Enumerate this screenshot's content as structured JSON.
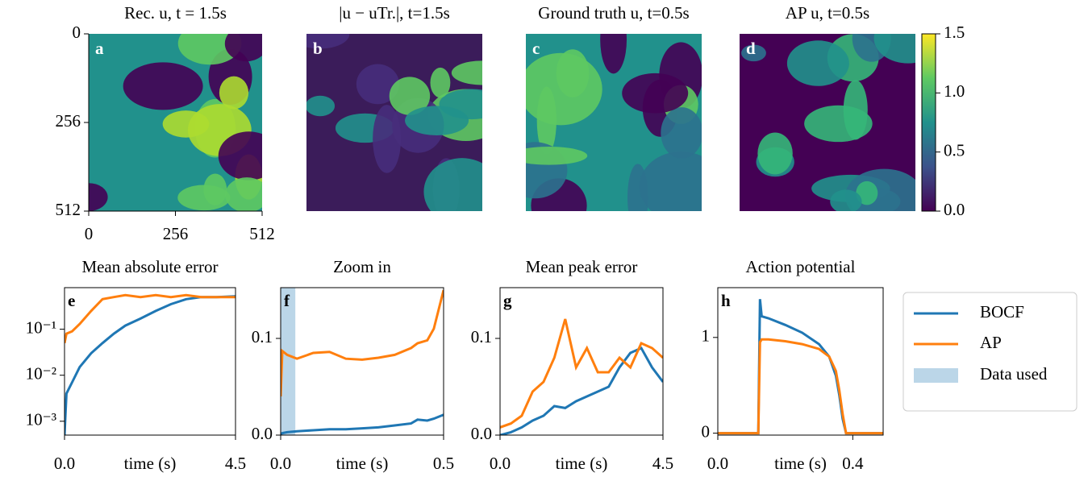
{
  "chart_data": [
    {
      "type": "heatmap",
      "title": "Rec. u, t = 1.5s",
      "label": "a",
      "xlim": [
        0,
        512
      ],
      "ylim": [
        512,
        0
      ],
      "xticks": [
        0,
        256,
        512
      ],
      "yticks": [
        0,
        256,
        512
      ]
    },
    {
      "type": "heatmap",
      "title": "|u − uTr.|, t=1.5s",
      "label": "b"
    },
    {
      "type": "heatmap",
      "title": "Ground truth u, t=0.5s",
      "label": "c"
    },
    {
      "type": "heatmap",
      "title": "AP u, t=0.5s",
      "label": "d",
      "colorbar": {
        "lim": [
          0,
          1.5
        ],
        "ticks": [
          {
            "value": 0,
            "label": "0.0"
          },
          0.5,
          {
            "value": 1,
            "label": "1.0"
          },
          1.5
        ]
      }
    },
    {
      "type": "line",
      "title": "Mean absolute error",
      "label": "e",
      "xlabel": "time (s)",
      "log_y": true,
      "xlim": [
        0,
        4.5
      ],
      "xticks": [
        {
          "value": 0,
          "label": "0.0"
        },
        4.5
      ],
      "ylim": [
        0.0005,
        0.8
      ],
      "yticks": [
        {
          "value": 0.001,
          "label": "10⁻³"
        },
        {
          "value": 0.01,
          "label": "10⁻²"
        },
        {
          "value": 0.1,
          "label": "10⁻¹"
        }
      ],
      "x": [
        0,
        0.05,
        0.2,
        0.4,
        0.7,
        1.0,
        1.3,
        1.6,
        2.0,
        2.4,
        2.8,
        3.2,
        3.6,
        4.0,
        4.5
      ],
      "series": [
        {
          "name": "BOCF",
          "color": "#1f77b4",
          "values": [
            0.0005,
            0.004,
            0.007,
            0.015,
            0.03,
            0.05,
            0.08,
            0.12,
            0.17,
            0.25,
            0.35,
            0.45,
            0.5,
            0.5,
            0.52
          ]
        },
        {
          "name": "AP",
          "color": "#ff7f0e",
          "values": [
            0.05,
            0.08,
            0.09,
            0.13,
            0.25,
            0.45,
            0.5,
            0.55,
            0.5,
            0.55,
            0.5,
            0.55,
            0.5,
            0.5,
            0.5
          ]
        }
      ]
    },
    {
      "type": "line",
      "title": "Zoom in",
      "label": "f",
      "xlabel": "time (s)",
      "xlim": [
        0,
        0.5
      ],
      "xticks": [
        {
          "value": 0,
          "label": "0.0"
        },
        0.5
      ],
      "ylim": [
        0,
        0.1525
      ],
      "yticks": [
        {
          "value": 0,
          "label": "0.0"
        },
        0.1
      ],
      "span": {
        "name": "Data used",
        "color": "#1f77b4",
        "range": [
          0,
          0.045
        ]
      },
      "x": [
        0,
        0.005,
        0.02,
        0.05,
        0.1,
        0.15,
        0.2,
        0.25,
        0.3,
        0.35,
        0.4,
        0.42,
        0.45,
        0.47,
        0.5
      ],
      "series": [
        {
          "name": "BOCF",
          "color": "#1f77b4",
          "values": [
            0.001,
            0.002,
            0.003,
            0.004,
            0.005,
            0.006,
            0.006,
            0.007,
            0.008,
            0.01,
            0.012,
            0.016,
            0.015,
            0.017,
            0.021
          ]
        },
        {
          "name": "AP",
          "color": "#ff7f0e",
          "values": [
            0.04,
            0.087,
            0.083,
            0.079,
            0.085,
            0.086,
            0.079,
            0.078,
            0.08,
            0.083,
            0.09,
            0.095,
            0.098,
            0.11,
            0.15
          ]
        }
      ]
    },
    {
      "type": "line",
      "title": "Mean peak error",
      "label": "g",
      "xlabel": "time (s)",
      "xlim": [
        0,
        4.5
      ],
      "xticks": [
        {
          "value": 0,
          "label": "0.0"
        },
        4.5
      ],
      "ylim": [
        0,
        0.1525
      ],
      "yticks": [
        {
          "value": 0,
          "label": "0.0"
        },
        0.1
      ],
      "x": [
        0,
        0.3,
        0.6,
        0.9,
        1.2,
        1.5,
        1.8,
        2.1,
        2.4,
        2.7,
        3.0,
        3.3,
        3.6,
        3.9,
        4.2,
        4.5
      ],
      "series": [
        {
          "name": "BOCF",
          "color": "#1f77b4",
          "values": [
            0,
            0.003,
            0.008,
            0.015,
            0.02,
            0.03,
            0.028,
            0.035,
            0.04,
            0.045,
            0.05,
            0.07,
            0.085,
            0.09,
            0.07,
            0.055
          ]
        },
        {
          "name": "AP",
          "color": "#ff7f0e",
          "values": [
            0.008,
            0.012,
            0.02,
            0.045,
            0.055,
            0.08,
            0.12,
            0.07,
            0.09,
            0.065,
            0.065,
            0.08,
            0.07,
            0.095,
            0.09,
            0.08
          ]
        }
      ]
    },
    {
      "type": "line",
      "title": "Action potential",
      "label": "h",
      "xlabel": "time (s)",
      "xlim": [
        0,
        0.49
      ],
      "xticks": [
        {
          "value": 0,
          "label": "0.0"
        },
        0.4
      ],
      "ylim": [
        -0.02,
        1.52
      ],
      "yticks": [
        0,
        1
      ],
      "x": [
        0,
        0.12,
        0.125,
        0.13,
        0.15,
        0.2,
        0.25,
        0.3,
        0.33,
        0.35,
        0.36,
        0.37,
        0.38,
        0.49
      ],
      "series": [
        {
          "name": "BOCF",
          "color": "#1f77b4",
          "values": [
            0,
            0,
            1.4,
            1.22,
            1.2,
            1.13,
            1.05,
            0.93,
            0.8,
            0.6,
            0.4,
            0.15,
            0,
            0
          ]
        },
        {
          "name": "AP",
          "color": "#ff7f0e",
          "values": [
            0,
            0,
            0.95,
            0.98,
            0.98,
            0.96,
            0.93,
            0.88,
            0.8,
            0.65,
            0.45,
            0.2,
            0,
            0
          ]
        }
      ]
    }
  ]
}
